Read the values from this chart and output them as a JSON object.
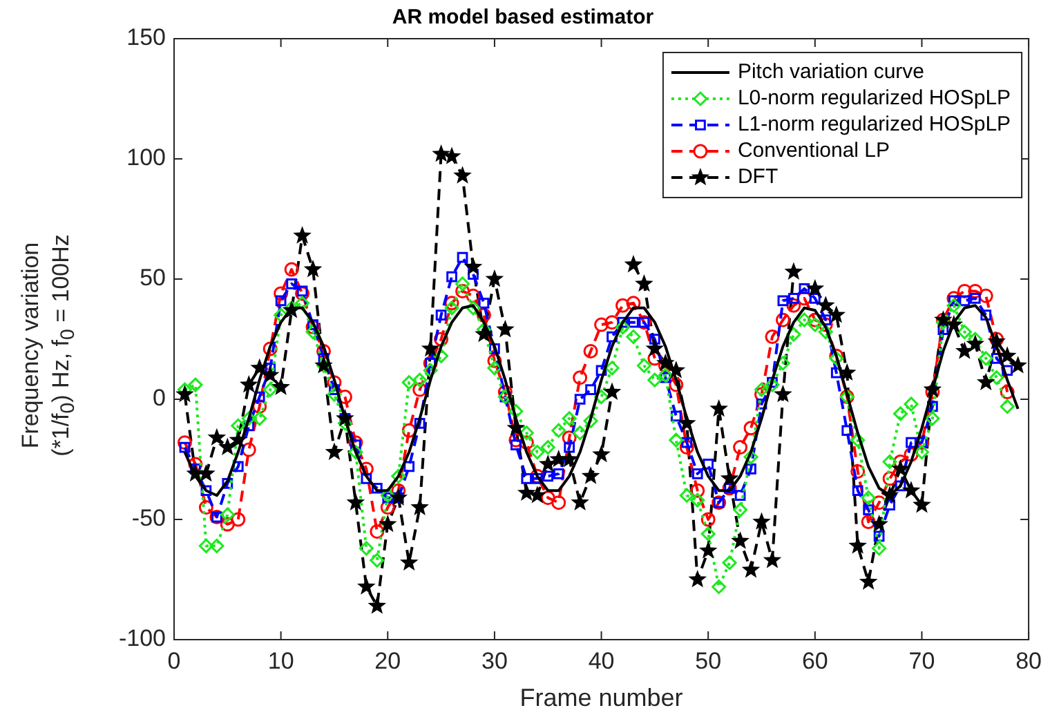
{
  "chart_data": {
    "type": "line",
    "title": "AR model based estimator",
    "xlabel": "Frame number",
    "ylabel": "Frequency variation\n(*1/f$_{0}$) Hz, f$_{0}$ = 100Hz",
    "x": [
      1,
      2,
      3,
      4,
      5,
      6,
      7,
      8,
      9,
      10,
      11,
      12,
      13,
      14,
      15,
      16,
      17,
      18,
      19,
      20,
      21,
      22,
      23,
      24,
      25,
      26,
      27,
      28,
      29,
      30,
      31,
      32,
      33,
      34,
      35,
      36,
      37,
      38,
      39,
      40,
      41,
      42,
      43,
      44,
      45,
      46,
      47,
      48,
      49,
      50,
      51,
      52,
      53,
      54,
      55,
      56,
      57,
      58,
      59,
      60,
      61,
      62,
      63,
      64,
      65,
      66,
      67,
      68,
      69,
      70,
      71,
      72,
      73,
      74,
      75,
      76,
      77,
      78,
      79
    ],
    "xlim": [
      0,
      80
    ],
    "xticks": [
      0,
      10,
      20,
      30,
      40,
      50,
      60,
      70,
      80
    ],
    "ylim": [
      -100,
      150
    ],
    "yticks": [
      -100,
      -50,
      0,
      50,
      100,
      150
    ],
    "grid": false,
    "legend": "top right",
    "series": [
      {
        "name": "Pitch variation curve",
        "color": "#000000",
        "marker": "none",
        "line_style": "solid",
        "values": [
          -22,
          -32,
          -38,
          -40,
          -34,
          -22,
          -8,
          8,
          22,
          32,
          38,
          38,
          32,
          22,
          8,
          -8,
          -22,
          -32,
          -38,
          -38,
          -32,
          -22,
          -8,
          8,
          22,
          32,
          38,
          39,
          32,
          22,
          8,
          -8,
          -22,
          -32,
          -38,
          -38,
          -32,
          -22,
          -8,
          8,
          22,
          32,
          38,
          38,
          32,
          22,
          8,
          -8,
          -22,
          -32,
          -38,
          -38,
          -32,
          -22,
          -8,
          8,
          22,
          32,
          38,
          37,
          30,
          18,
          2,
          -14,
          -28,
          -37,
          -40,
          -36,
          -26,
          -12,
          4,
          20,
          32,
          38,
          39,
          34,
          22,
          8,
          -4
        ]
      },
      {
        "name": "L0-norm regularized HOSpLP",
        "color": "#1ee81e",
        "marker": "diamond",
        "line_style": "dotted",
        "values": [
          4,
          6,
          -61,
          -61,
          -48,
          -11,
          -8,
          -8,
          4,
          35,
          38,
          40,
          28,
          14,
          2,
          -10,
          -22,
          -62,
          -67,
          -40,
          -32,
          7,
          8,
          12,
          18,
          38,
          48,
          38,
          29,
          13,
          1,
          -5,
          -14,
          -22,
          -20,
          -13,
          -8,
          -14,
          -9,
          1,
          13,
          30,
          26,
          14,
          8,
          10,
          -17,
          -40,
          -42,
          -56,
          -78,
          -68,
          -46,
          -24,
          4,
          6,
          15,
          27,
          33,
          31,
          28,
          17,
          1,
          -17,
          -41,
          -62,
          -26,
          -6,
          -2,
          -22,
          -8,
          32,
          39,
          28,
          25,
          17,
          9,
          -3,
          null
        ]
      },
      {
        "name": "L1-norm regularized HOSpLP",
        "color": "#0000ff",
        "marker": "square",
        "line_style": "dashed",
        "values": [
          -20,
          -29,
          -38,
          -49,
          -35,
          -28,
          -11,
          1,
          13,
          41,
          48,
          45,
          31,
          17,
          4,
          -8,
          -19,
          -33,
          -37,
          -41,
          -41,
          -28,
          -10,
          15,
          35,
          51,
          59,
          52,
          40,
          21,
          1,
          -19,
          -33,
          -33,
          -32,
          -31,
          -20,
          0,
          4,
          12,
          26,
          32,
          32,
          32,
          25,
          9,
          -7,
          -18,
          -31,
          -27,
          -43,
          -37,
          -40,
          -29,
          -2,
          7,
          41,
          42,
          46,
          42,
          33,
          11,
          -13,
          -38,
          -46,
          -57,
          -44,
          -36,
          -18,
          -18,
          -3,
          29,
          41,
          41,
          42,
          35,
          17,
          12,
          null
        ]
      },
      {
        "name": "Conventional LP",
        "color": "#ff0000",
        "marker": "circle",
        "line_style": "dashed",
        "values": [
          -18,
          -27,
          -45,
          -49,
          -52,
          -50,
          -21,
          -3,
          21,
          44,
          54,
          44,
          30,
          20,
          7,
          1,
          -18,
          -29,
          -55,
          -45,
          -38,
          -13,
          4,
          15,
          25,
          40,
          45,
          43,
          35,
          16,
          3,
          -17,
          -18,
          -32,
          -41,
          -43,
          -16,
          9,
          20,
          31,
          32,
          39,
          40,
          32,
          17,
          14,
          6,
          -20,
          -38,
          -50,
          -43,
          -37,
          -20,
          -12,
          2,
          26,
          33,
          39,
          42,
          33,
          31,
          18,
          1,
          -30,
          -51,
          -43,
          -33,
          -26,
          -23,
          -18,
          3,
          33,
          42,
          45,
          45,
          43,
          25,
          3,
          null
        ]
      },
      {
        "name": "DFT",
        "color": "#000000",
        "marker": "star",
        "line_style": "dashed",
        "values": [
          2,
          -31,
          -31,
          -16,
          -20,
          -17,
          6,
          13,
          10,
          5,
          37,
          68,
          54,
          14,
          -22,
          -8,
          -43,
          -78,
          -86,
          -52,
          -41,
          -68,
          -45,
          21,
          102,
          101,
          93,
          55,
          27,
          50,
          29,
          -12,
          -39,
          -40,
          -27,
          -25,
          -25,
          -43,
          -32,
          -23,
          3,
          null,
          56,
          48,
          21,
          15,
          12,
          -10,
          -75,
          -63,
          -4,
          -33,
          -59,
          -71,
          -51,
          -67,
          2,
          53,
          null,
          46,
          39,
          35,
          11,
          -61,
          -76,
          -52,
          -40,
          -29,
          -38,
          -44,
          4,
          33,
          31,
          20,
          23,
          7,
          24,
          18,
          14
        ]
      }
    ]
  }
}
